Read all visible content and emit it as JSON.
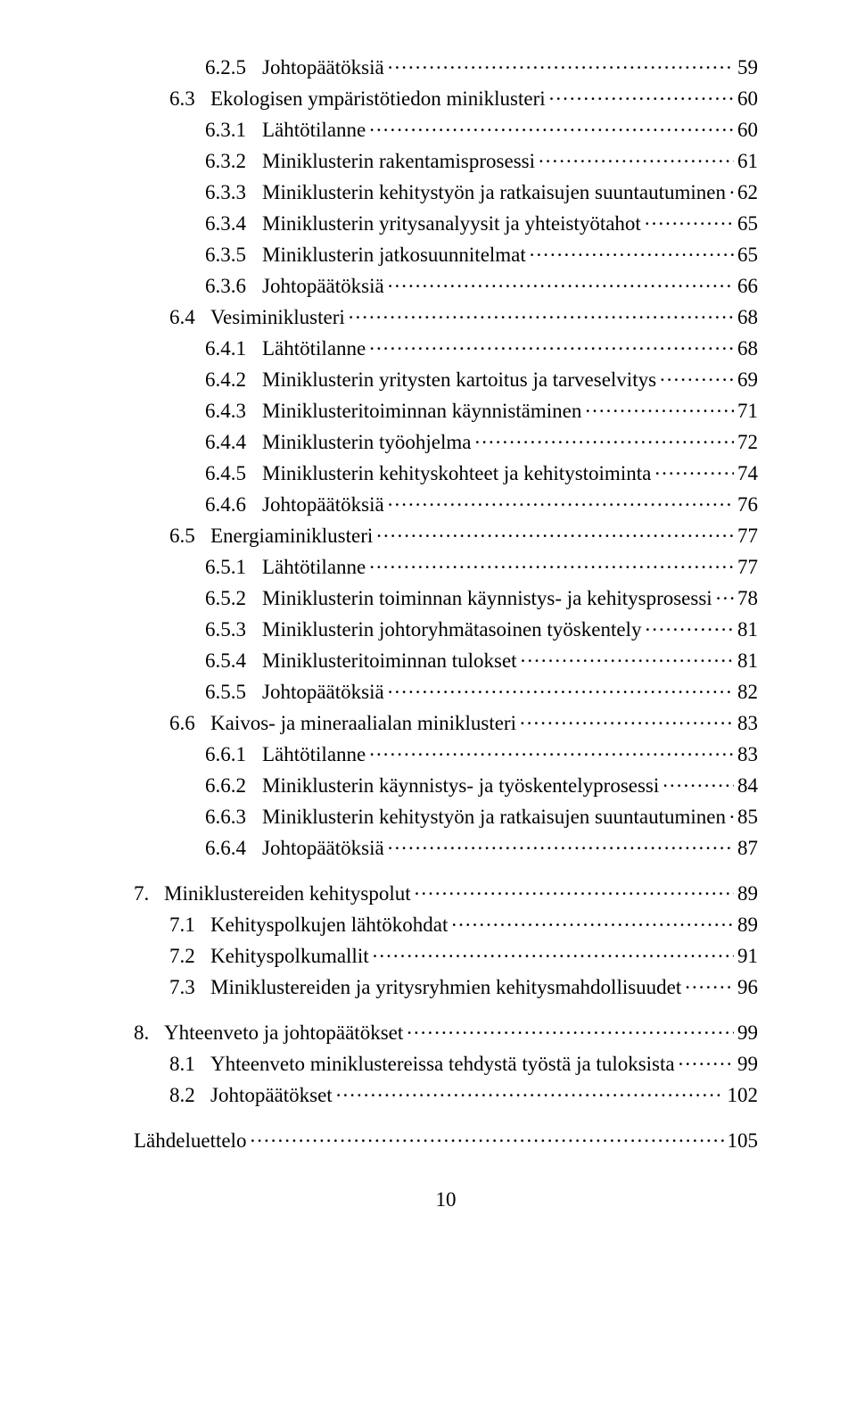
{
  "page_number": "10",
  "entries": [
    {
      "indent": 3,
      "num": "6.2.5",
      "title": "Johtopäätöksiä",
      "page": "59",
      "gap": false
    },
    {
      "indent": 2,
      "num": "6.3",
      "title": "Ekologisen ympäristötiedon miniklusteri",
      "page": "60",
      "gap": false
    },
    {
      "indent": 3,
      "num": "6.3.1",
      "title": "Lähtötilanne",
      "page": "60",
      "gap": false
    },
    {
      "indent": 3,
      "num": "6.3.2",
      "title": "Miniklusterin rakentamisprosessi",
      "page": "61",
      "gap": false
    },
    {
      "indent": 3,
      "num": "6.3.3",
      "title": "Miniklusterin kehitystyön ja ratkaisujen suuntautuminen",
      "page": "62",
      "gap": false
    },
    {
      "indent": 3,
      "num": "6.3.4",
      "title": "Miniklusterin yritysanalyysit ja yhteistyötahot",
      "page": "65",
      "gap": false
    },
    {
      "indent": 3,
      "num": "6.3.5",
      "title": "Miniklusterin jatkosuunnitelmat",
      "page": "65",
      "gap": false
    },
    {
      "indent": 3,
      "num": "6.3.6",
      "title": "Johtopäätöksiä",
      "page": "66",
      "gap": false
    },
    {
      "indent": 2,
      "num": "6.4",
      "title": "Vesiminiklusteri",
      "page": "68",
      "gap": false
    },
    {
      "indent": 3,
      "num": "6.4.1",
      "title": "Lähtötilanne",
      "page": "68",
      "gap": false
    },
    {
      "indent": 3,
      "num": "6.4.2",
      "title": "Miniklusterin yritysten kartoitus ja tarveselvitys",
      "page": "69",
      "gap": false
    },
    {
      "indent": 3,
      "num": "6.4.3",
      "title": "Miniklusteritoiminnan käynnistäminen",
      "page": "71",
      "gap": false
    },
    {
      "indent": 3,
      "num": "6.4.4",
      "title": "Miniklusterin työohjelma",
      "page": "72",
      "gap": false
    },
    {
      "indent": 3,
      "num": "6.4.5",
      "title": "Miniklusterin kehityskohteet ja kehitystoiminta",
      "page": "74",
      "gap": false
    },
    {
      "indent": 3,
      "num": "6.4.6",
      "title": "Johtopäätöksiä",
      "page": "76",
      "gap": false
    },
    {
      "indent": 2,
      "num": "6.5",
      "title": "Energiaminiklusteri",
      "page": "77",
      "gap": false
    },
    {
      "indent": 3,
      "num": "6.5.1",
      "title": "Lähtötilanne",
      "page": "77",
      "gap": false
    },
    {
      "indent": 3,
      "num": "6.5.2",
      "title": "Miniklusterin toiminnan käynnistys- ja kehitysprosessi",
      "page": "78",
      "gap": false
    },
    {
      "indent": 3,
      "num": "6.5.3",
      "title": "Miniklusterin johtoryhmätasoinen työskentely",
      "page": "81",
      "gap": false
    },
    {
      "indent": 3,
      "num": "6.5.4",
      "title": "Miniklusteritoiminnan tulokset",
      "page": "81",
      "gap": false
    },
    {
      "indent": 3,
      "num": "6.5.5",
      "title": "Johtopäätöksiä",
      "page": "82",
      "gap": false
    },
    {
      "indent": 2,
      "num": "6.6",
      "title": "Kaivos- ja mineraalialan miniklusteri",
      "page": "83",
      "gap": false
    },
    {
      "indent": 3,
      "num": "6.6.1",
      "title": "Lähtötilanne",
      "page": "83",
      "gap": false
    },
    {
      "indent": 3,
      "num": "6.6.2",
      "title": "Miniklusterin käynnistys- ja työskentelyprosessi",
      "page": "84",
      "gap": false
    },
    {
      "indent": 3,
      "num": "6.6.3",
      "title": "Miniklusterin kehitystyön ja ratkaisujen suuntautuminen",
      "page": "85",
      "gap": false
    },
    {
      "indent": 3,
      "num": "6.6.4",
      "title": "Johtopäätöksiä",
      "page": "87",
      "gap": false
    },
    {
      "indent": 1,
      "num": "7.",
      "title": "Miniklustereiden kehityspolut",
      "page": "89",
      "gap": true
    },
    {
      "indent": 2,
      "num": "7.1",
      "title": "Kehityspolkujen lähtökohdat",
      "page": "89",
      "gap": false
    },
    {
      "indent": 2,
      "num": "7.2",
      "title": "Kehityspolkumallit",
      "page": "91",
      "gap": false
    },
    {
      "indent": 2,
      "num": "7.3",
      "title": "Miniklustereiden ja yritysryhmien kehitysmahdollisuudet",
      "page": "96",
      "gap": false
    },
    {
      "indent": 1,
      "num": "8.",
      "title": "Yhteenveto ja johtopäätökset",
      "page": "99",
      "gap": true
    },
    {
      "indent": 2,
      "num": "8.1",
      "title": "Yhteenveto miniklustereissa tehdystä työstä ja tuloksista",
      "page": "99",
      "gap": false
    },
    {
      "indent": 2,
      "num": "8.2",
      "title": "Johtopäätökset",
      "page": "102",
      "gap": false
    },
    {
      "indent": 0,
      "num": "",
      "title": "Lähdeluettelo",
      "page": "105",
      "gap": true
    }
  ]
}
